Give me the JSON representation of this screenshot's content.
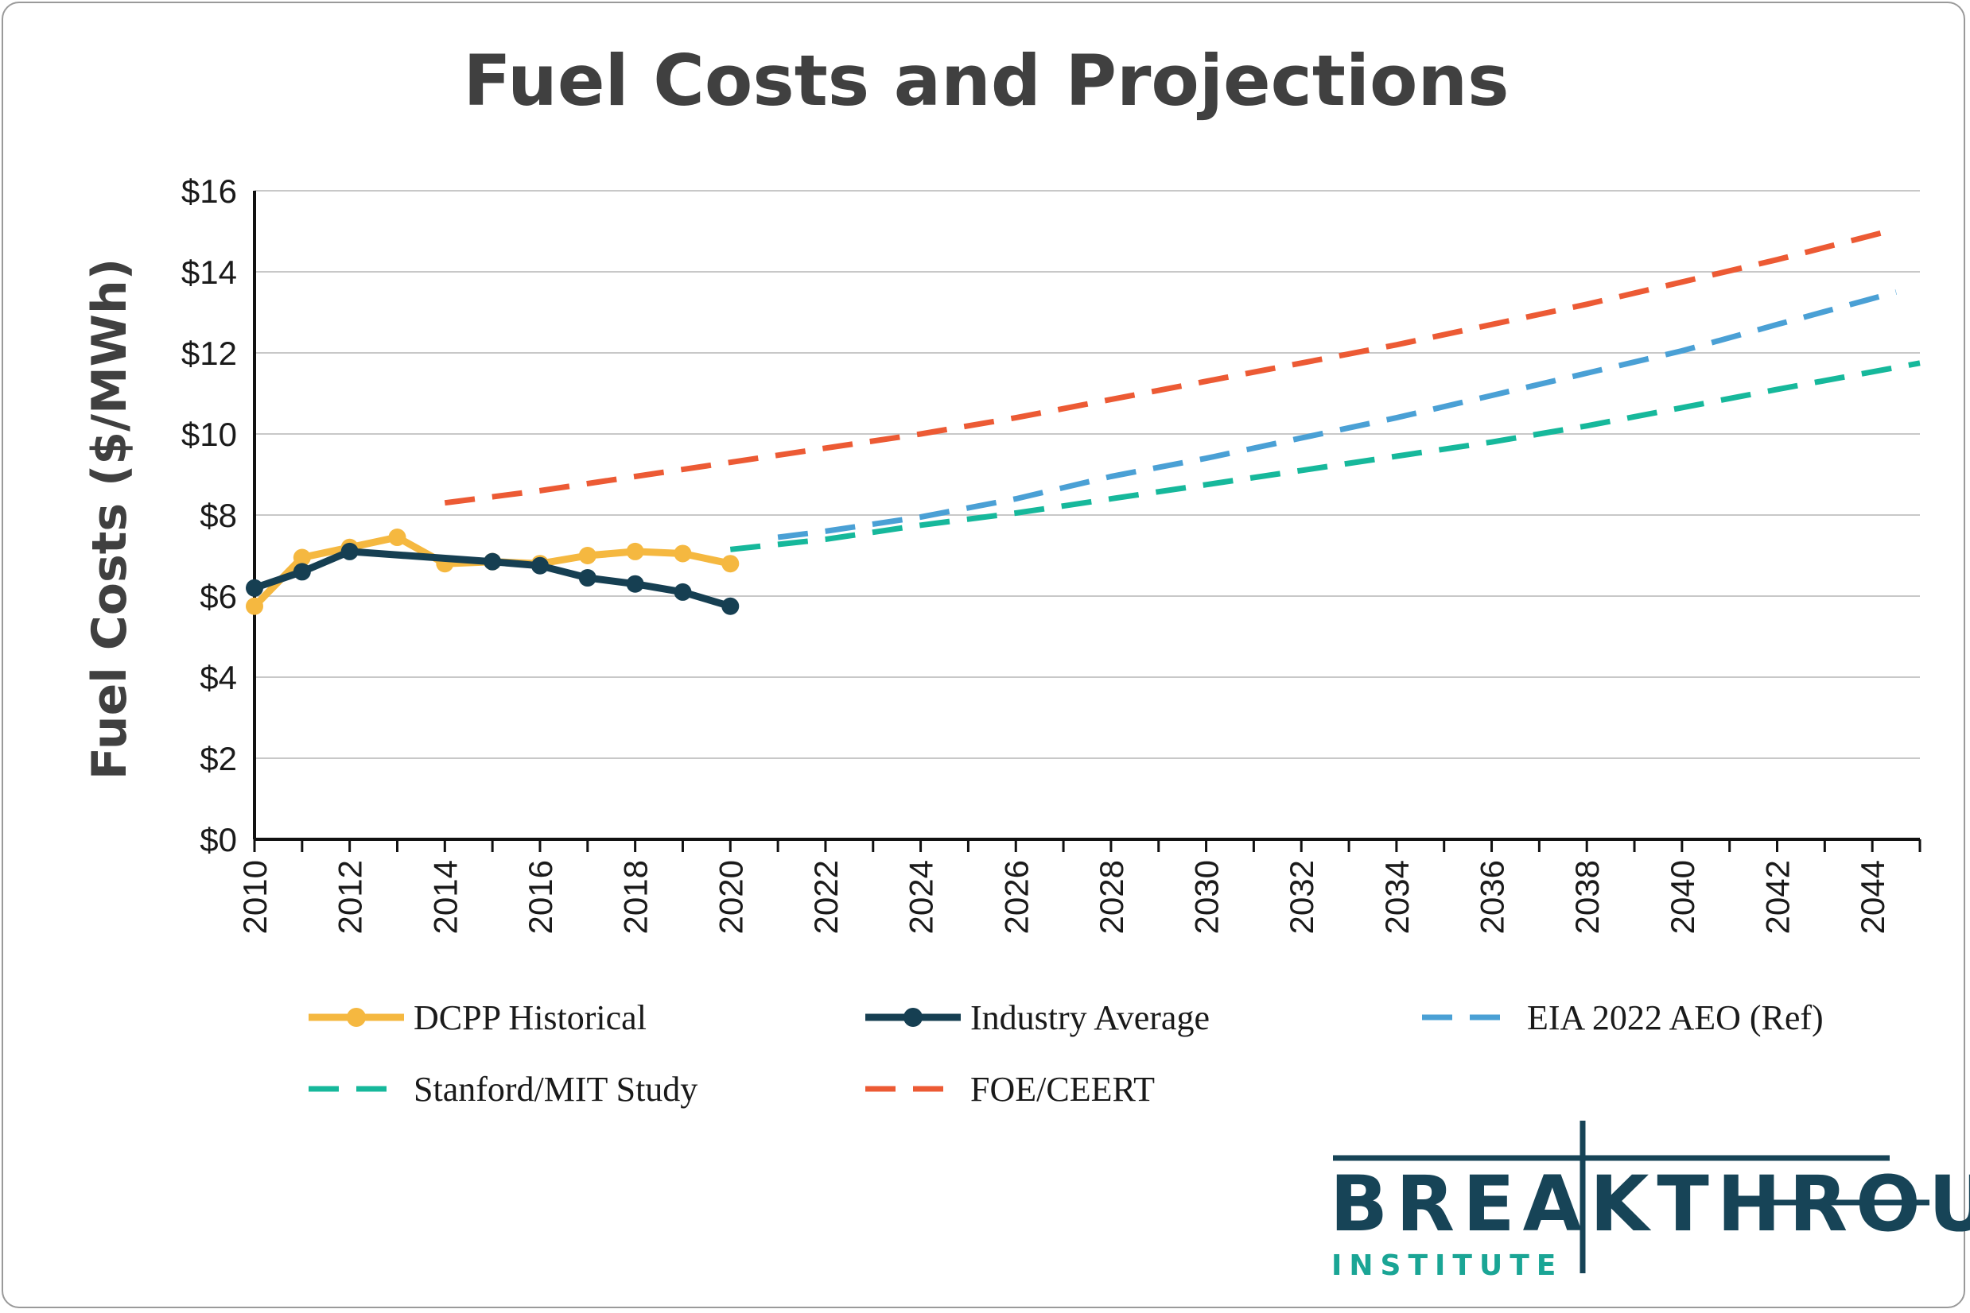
{
  "chart_data": {
    "type": "line",
    "title": "Fuel Costs and Projections",
    "ylabel": "Fuel Costs ($/MWh)",
    "xlabel": "",
    "xlim": [
      2010,
      2045
    ],
    "ylim": [
      0,
      16
    ],
    "x_ticks": [
      "2010",
      "2012",
      "2014",
      "2016",
      "2018",
      "2020",
      "2022",
      "2024",
      "2026",
      "2028",
      "2030",
      "2032",
      "2034",
      "2036",
      "2038",
      "2040",
      "2042",
      "2044"
    ],
    "y_ticks": [
      "$0",
      "$2",
      "$4",
      "$6",
      "$8",
      "$10",
      "$12",
      "$14",
      "$16"
    ],
    "grid": "horizontal",
    "legend_position": "bottom",
    "series": [
      {
        "name": "DCPP Historical",
        "color": "#f5b840",
        "style": "solid-markers",
        "x": [
          2010,
          2011,
          2012,
          2013,
          2014,
          2015,
          2016,
          2017,
          2018,
          2019,
          2020
        ],
        "y": [
          5.75,
          6.95,
          7.2,
          7.45,
          6.8,
          6.85,
          6.8,
          7.0,
          7.1,
          7.05,
          6.8
        ]
      },
      {
        "name": "Industry Average",
        "color": "#163f52",
        "style": "solid-markers",
        "x": [
          2010,
          2011,
          2012,
          2015,
          2016,
          2017,
          2018,
          2019,
          2020
        ],
        "y": [
          6.2,
          6.6,
          7.1,
          6.85,
          6.75,
          6.45,
          6.3,
          6.1,
          5.75
        ]
      },
      {
        "name": "EIA 2022 AEO (Ref)",
        "color": "#4aa0d5",
        "style": "dashed",
        "x": [
          2021,
          2022,
          2024,
          2026,
          2028,
          2030,
          2032,
          2034,
          2036,
          2038,
          2040,
          2042,
          2044.5
        ],
        "y": [
          7.45,
          7.6,
          7.95,
          8.4,
          8.95,
          9.4,
          9.9,
          10.4,
          10.95,
          11.5,
          12.05,
          12.7,
          13.5
        ]
      },
      {
        "name": "Stanford/MIT Study",
        "color": "#16b89b",
        "style": "dashed",
        "x": [
          2020,
          2022,
          2024,
          2026,
          2028,
          2030,
          2032,
          2034,
          2036,
          2038,
          2040,
          2042,
          2045
        ],
        "y": [
          7.15,
          7.4,
          7.75,
          8.05,
          8.4,
          8.75,
          9.1,
          9.45,
          9.8,
          10.2,
          10.65,
          11.1,
          11.75
        ]
      },
      {
        "name": "FOE/CEERT",
        "color": "#ec5a34",
        "style": "dashed",
        "x": [
          2014,
          2016,
          2018,
          2020,
          2022,
          2024,
          2026,
          2028,
          2030,
          2032,
          2034,
          2036,
          2038,
          2040,
          2042,
          2044.5
        ],
        "y": [
          8.3,
          8.6,
          8.95,
          9.3,
          9.65,
          10.0,
          10.4,
          10.85,
          11.3,
          11.75,
          12.2,
          12.7,
          13.2,
          13.75,
          14.3,
          15.05
        ]
      }
    ]
  },
  "logo": {
    "main": "BREAKTHROUGH",
    "sub": "INSTITUTE",
    "main_color": "#174457",
    "sub_color": "#1aa595"
  }
}
